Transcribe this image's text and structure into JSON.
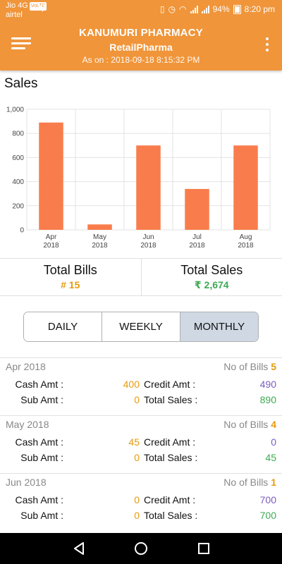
{
  "status_bar": {
    "carrier1": "Jio 4G",
    "volte": "VoLTE",
    "carrier2": "airtel",
    "battery": "94%",
    "time": "8:20 pm"
  },
  "app_bar": {
    "store_name": "KANUMURI PHARMACY",
    "branch": "RetailPharma",
    "as_on": "As on : 2018-09-18 8:15:32 PM"
  },
  "section_title": "Sales",
  "chart_data": {
    "type": "bar",
    "categories": [
      "Apr 2018",
      "May 2018",
      "Jun 2018",
      "Jul 2018",
      "Aug 2018"
    ],
    "category_lines": [
      [
        "Apr",
        "2018"
      ],
      [
        "May",
        "2018"
      ],
      [
        "Jun",
        "2018"
      ],
      [
        "Jul",
        "2018"
      ],
      [
        "Aug",
        "2018"
      ]
    ],
    "values": [
      890,
      45,
      700,
      339,
      700
    ],
    "ylim": [
      0,
      1000
    ],
    "yticks": [
      0,
      200,
      400,
      600,
      800,
      1000
    ],
    "ytick_labels": [
      "0",
      "200",
      "400",
      "600",
      "800",
      "1,000"
    ],
    "grid": true,
    "bar_color": "#f97d4c",
    "title": "",
    "xlabel": "",
    "ylabel": ""
  },
  "totals": {
    "bills_label": "Total Bills",
    "bills_value": "# 15",
    "sales_label": "Total Sales",
    "sales_value": "₹ 2,674"
  },
  "tabs": [
    "DAILY",
    "WEEKLY",
    "MONTHLY"
  ],
  "active_tab": "MONTHLY",
  "labels": {
    "no_of_bills": "No of Bills",
    "cash_amt": "Cash Amt :",
    "credit_amt": "Credit Amt :",
    "sub_amt": "Sub Amt :",
    "total_sales": "Total Sales :"
  },
  "periods": [
    {
      "name": "Apr 2018",
      "bills": "5",
      "cash": "400",
      "credit": "490",
      "sub": "0",
      "total": "890"
    },
    {
      "name": "May 2018",
      "bills": "4",
      "cash": "45",
      "credit": "0",
      "sub": "0",
      "total": "45"
    },
    {
      "name": "Jun 2018",
      "bills": "1",
      "cash": "0",
      "credit": "700",
      "sub": "0",
      "total": "700"
    }
  ],
  "colors": {
    "primary": "#f0953a",
    "amount_orange": "#e69b0c",
    "credit_purple": "#7c5bc2",
    "total_green": "#3caa52",
    "active_tab_bg": "#cfd8e3"
  }
}
